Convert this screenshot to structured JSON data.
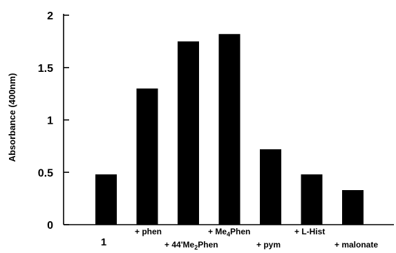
{
  "chart_data": {
    "type": "bar",
    "title": "",
    "xlabel": "",
    "ylabel": "Absorbance (400nm)",
    "ylim": [
      0,
      2
    ],
    "yticks": [
      "0",
      "0.5",
      "1",
      "1.5",
      "2"
    ],
    "ytick_values": [
      0,
      0.5,
      1,
      1.5,
      2
    ],
    "grid": false,
    "bar_color": "#000000",
    "categories": [
      {
        "prefix": "",
        "main": "1",
        "sub": "",
        "rest": ""
      },
      {
        "prefix": "+ ",
        "main": "phen",
        "sub": "",
        "rest": ""
      },
      {
        "prefix": "+ ",
        "main": "44'Me",
        "sub": "2",
        "rest": "Phen"
      },
      {
        "prefix": "+ ",
        "main": "Me",
        "sub": "4",
        "rest": "Phen"
      },
      {
        "prefix": "+ ",
        "main": "pym",
        "sub": "",
        "rest": ""
      },
      {
        "prefix": "+ ",
        "main": "L-Hist",
        "sub": "",
        "rest": ""
      },
      {
        "prefix": "+ ",
        "main": "malonate",
        "sub": "",
        "rest": ""
      }
    ],
    "values": [
      0.48,
      1.3,
      1.75,
      1.82,
      0.72,
      0.48,
      0.33
    ]
  }
}
